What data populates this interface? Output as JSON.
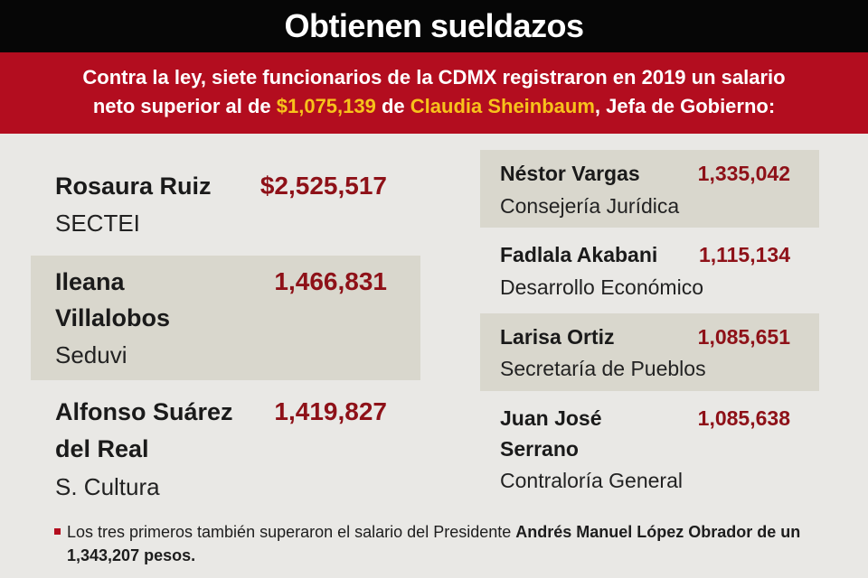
{
  "header": {
    "title": "Obtienen sueldazos",
    "intro_line1": "Contra la ley, siete funcionarios de la CDMX registraron en 2019 un salario",
    "intro_line2_a": "neto superior al de ",
    "intro_highlight_amount": "$1,075,139",
    "intro_line2_b": " de ",
    "intro_highlight_name": "Claudia Sheinbaum",
    "intro_line2_c": ", Jefa de Gobierno:"
  },
  "officials_left": [
    {
      "name_line1": "Rosaura Ruiz",
      "name_line2": "",
      "department": "SECTEI",
      "salary": "$2,525,517"
    },
    {
      "name_line1": "Ileana",
      "name_line2": "Villalobos",
      "department": "Seduvi",
      "salary": "1,466,831"
    },
    {
      "name_line1": "Alfonso Suárez",
      "name_line2": "del Real",
      "department": "S. Cultura",
      "salary": "1,419,827"
    }
  ],
  "officials_right": [
    {
      "name_line1": "Néstor Vargas",
      "name_line2": "",
      "department": "Consejería Jurídica",
      "salary": "1,335,042"
    },
    {
      "name_line1": "Fadlala Akabani",
      "name_line2": "",
      "department": "Desarrollo Económico",
      "salary": "1,115,134"
    },
    {
      "name_line1": "Larisa Ortiz",
      "name_line2": "",
      "department": "Secretaría de Pueblos",
      "salary": "1,085,651"
    },
    {
      "name_line1": "Juan José",
      "name_line2": "Serrano",
      "department": "Contraloría General",
      "salary": "1,085,638"
    }
  ],
  "footnote": {
    "text_a": "Los tres primeros también superaron el salario del Presidente ",
    "bold_name": "Andrés Manuel López Obrador de un 1,343,207 pesos."
  },
  "colors": {
    "title_bar": "#060606",
    "subtitle_bar": "#b30d1f",
    "highlight": "#f7c21b",
    "amount": "#8e1118",
    "shaded_card": "#d9d7cd",
    "background": "#e9e8e5"
  }
}
